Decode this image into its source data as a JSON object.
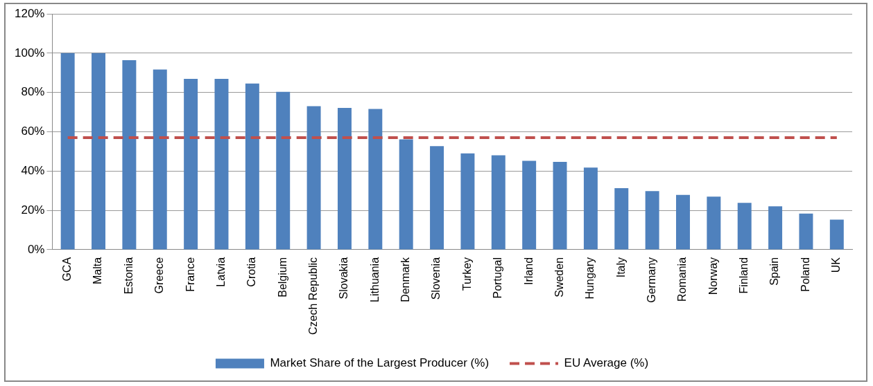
{
  "chart_data": {
    "type": "bar",
    "categories": [
      "GCA",
      "Malta",
      "Estonia",
      "Greece",
      "France",
      "Latvia",
      "Crotia",
      "Belgium",
      "Czech Republic",
      "Slovakia",
      "Lithuania",
      "Denmark",
      "Slovenia",
      "Turkey",
      "Portugal",
      "Irland",
      "Sweden",
      "Hungary",
      "Italy",
      "Germany",
      "Romania",
      "Norway",
      "Finland",
      "Spain",
      "Poland",
      "UK"
    ],
    "series": [
      {
        "name": "Market Share of the Largest Producer (%)",
        "color": "#4f81bd",
        "values": [
          100,
          100,
          96.4,
          91.7,
          86.9,
          86.9,
          84.5,
          80.3,
          73,
          72.1,
          71.6,
          56.1,
          52.7,
          49,
          48,
          45.2,
          44.7,
          41.8,
          31.3,
          29.8,
          27.9,
          27,
          23.8,
          22.1,
          18.4,
          15.3
        ]
      },
      {
        "name": "EU Average (%)",
        "type": "line",
        "color": "#c0504d",
        "line_style": "dashed",
        "marker": "none",
        "values": [
          57,
          57,
          57,
          57,
          57,
          57,
          57,
          57,
          57,
          57,
          57,
          57,
          57,
          57,
          57,
          57,
          57,
          57,
          57,
          57,
          57,
          57,
          57,
          57,
          57,
          57
        ]
      }
    ],
    "ylim": [
      0,
      120
    ],
    "yticks": [
      {
        "value": 0,
        "label": "0%"
      },
      {
        "value": 20,
        "label": "20%"
      },
      {
        "value": 40,
        "label": "40%"
      },
      {
        "value": 60,
        "label": "60%"
      },
      {
        "value": 80,
        "label": "80%"
      },
      {
        "value": 100,
        "label": "100%"
      },
      {
        "value": 120,
        "label": "120%"
      }
    ],
    "grid": "y",
    "legend": "bottom"
  }
}
